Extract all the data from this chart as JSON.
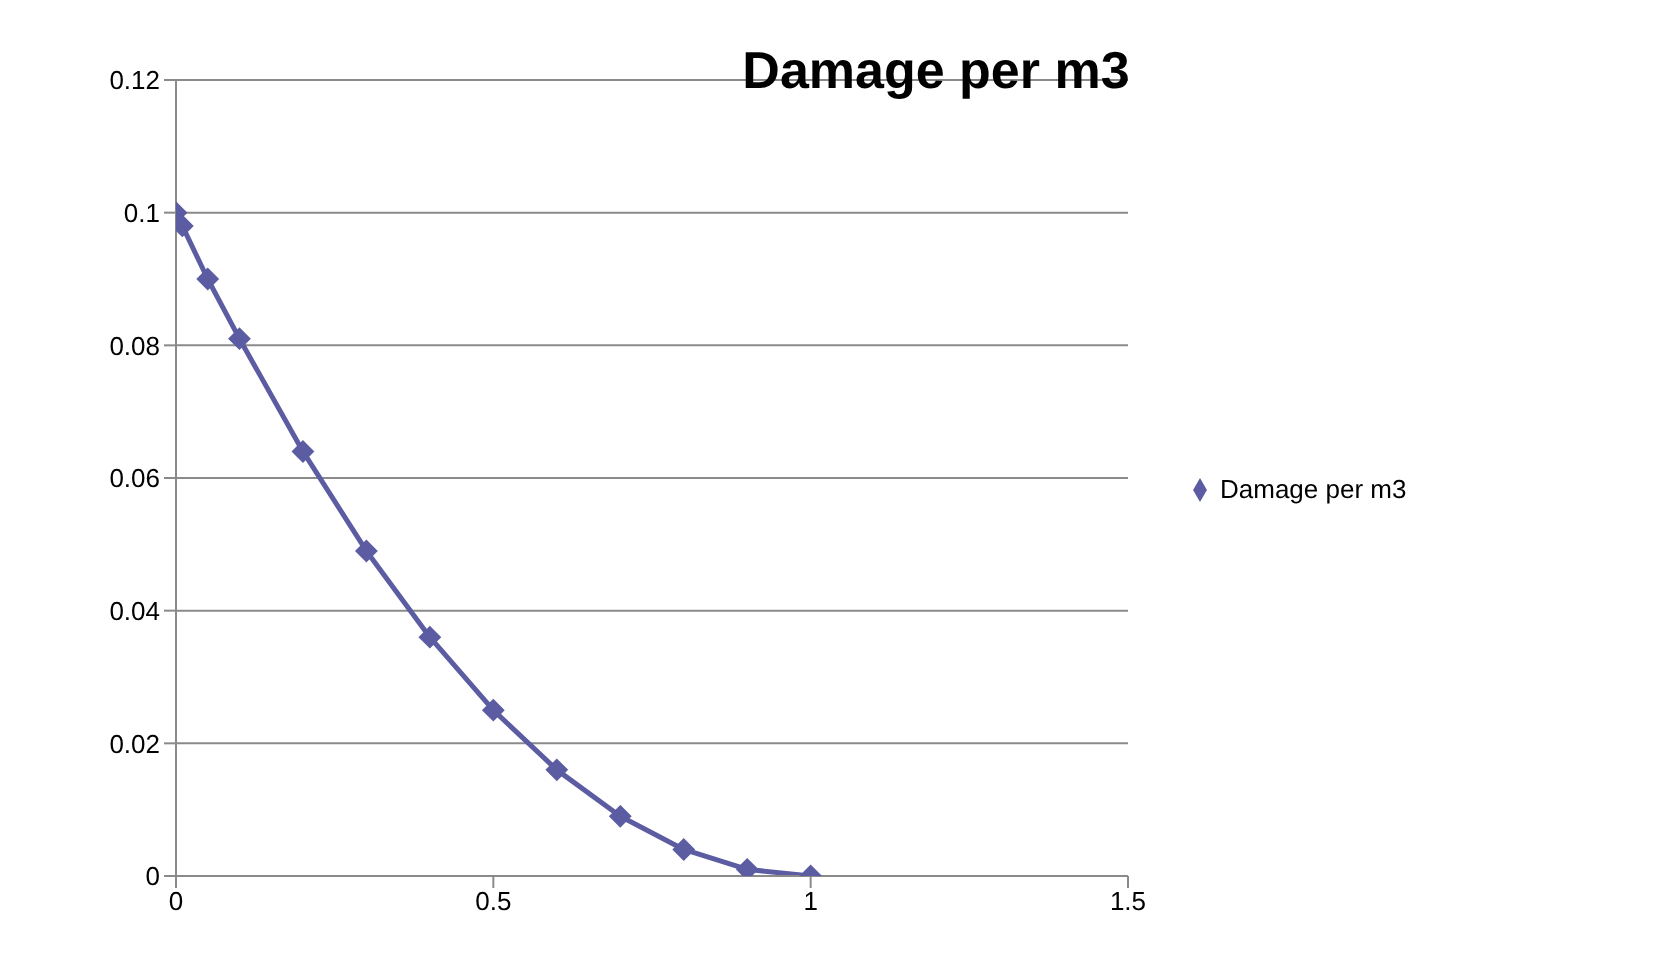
{
  "chart_data": {
    "type": "line",
    "title": "Damage per m3",
    "x": [
      0,
      0.01,
      0.05,
      0.1,
      0.2,
      0.3,
      0.4,
      0.5,
      0.6,
      0.7,
      0.8,
      0.9,
      1
    ],
    "series": [
      {
        "name": "Damage per m3",
        "color": "#5c5ca3",
        "values": [
          0.1,
          0.098,
          0.09,
          0.081,
          0.064,
          0.049,
          0.036,
          0.025,
          0.016,
          0.009,
          0.004,
          0.001,
          0
        ]
      }
    ],
    "xlim": [
      0,
      1.5
    ],
    "xticks": [
      0,
      0.5,
      1,
      1.5
    ],
    "ylim": [
      0,
      0.12
    ],
    "yticks": [
      0,
      0.02,
      0.04,
      0.06,
      0.08,
      0.1,
      0.12
    ],
    "grid": "y",
    "legend": "right",
    "marker": "diamond",
    "line_style": "solid"
  }
}
